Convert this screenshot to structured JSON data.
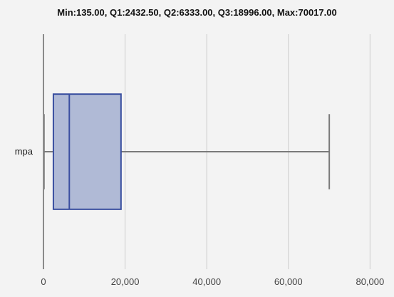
{
  "chart_data": {
    "type": "boxplot",
    "title": "Min:135.00, Q1:2432.50, Q2:6333.00, Q3:18996.00, Max:70017.00",
    "orientation": "horizontal",
    "xlim": [
      0,
      85000
    ],
    "xticks": [
      0,
      20000,
      40000,
      60000,
      80000
    ],
    "xtick_labels": [
      "0",
      "20,000",
      "40,000",
      "60,000",
      "80,000"
    ],
    "grid": true,
    "categories": [
      "mpa"
    ],
    "series": [
      {
        "min": 135.0,
        "q1": 2432.5,
        "median": 6333.0,
        "q3": 18996.0,
        "max": 70017.0
      }
    ],
    "colors": {
      "box_fill": "#b0bad6",
      "box_stroke": "#3a4fa0",
      "whisker": "#7a7a7a",
      "grid": "#cccccc",
      "axis": "#222222",
      "background": "#f3f3f3"
    }
  }
}
